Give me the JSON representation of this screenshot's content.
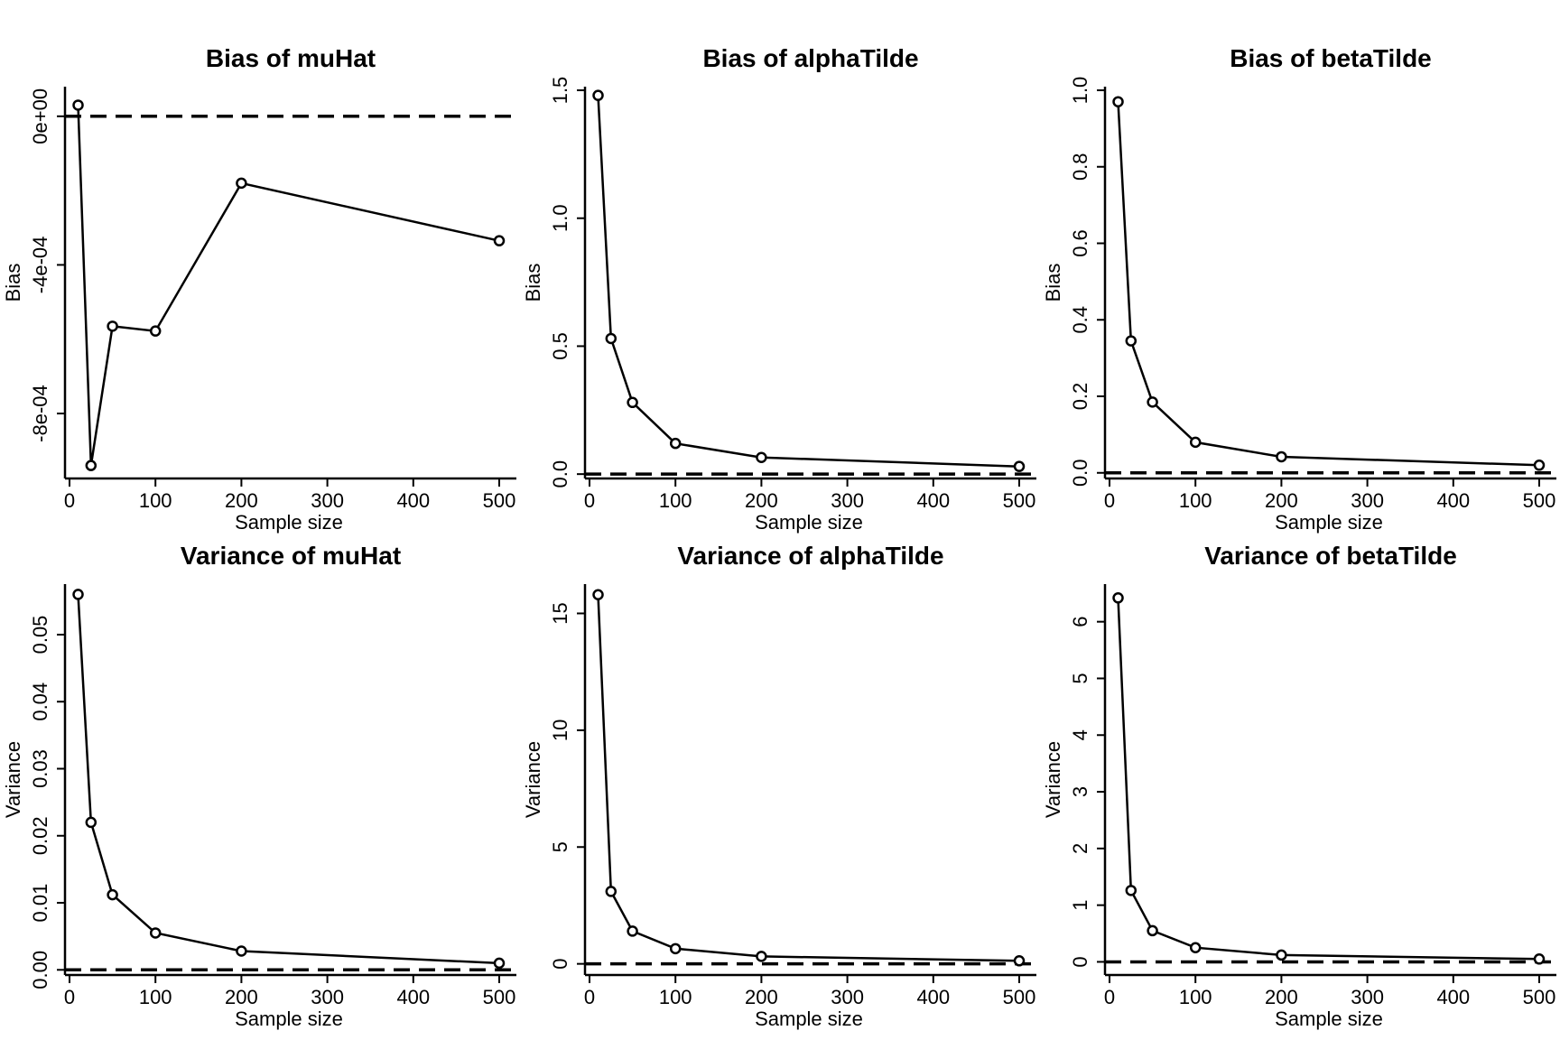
{
  "chart_data": [
    {
      "type": "line",
      "title": "Bias of muHat",
      "xlabel": "Sample size",
      "ylabel": "Bias",
      "x": [
        10,
        25,
        50,
        100,
        200,
        500
      ],
      "values": [
        3e-05,
        -0.00094,
        -0.000565,
        -0.000578,
        -0.00018,
        -0.000335
      ],
      "reference_line": 0,
      "xlim": [
        0,
        500
      ],
      "ylim": [
        -0.00097,
        7e-05
      ],
      "xticks": [
        0,
        100,
        200,
        300,
        400,
        500
      ],
      "xtick_labels": [
        "0",
        "100",
        "200",
        "300",
        "400",
        "500"
      ],
      "yticks": [
        0,
        -0.0004,
        -0.0008
      ],
      "ytick_labels": [
        "0e+00",
        "-4e-04",
        "-8e-04"
      ],
      "grid": false
    },
    {
      "type": "line",
      "title": "Bias of alphaTilde",
      "xlabel": "Sample size",
      "ylabel": "Bias",
      "x": [
        10,
        25,
        50,
        100,
        200,
        500
      ],
      "values": [
        1.48,
        0.53,
        0.28,
        0.12,
        0.065,
        0.03
      ],
      "reference_line": 0,
      "xlim": [
        0,
        500
      ],
      "ylim": [
        -0.01,
        1.5
      ],
      "xticks": [
        0,
        100,
        200,
        300,
        400,
        500
      ],
      "xtick_labels": [
        "0",
        "100",
        "200",
        "300",
        "400",
        "500"
      ],
      "yticks": [
        0,
        0.5,
        1,
        1.5
      ],
      "ytick_labels": [
        "0.0",
        "0.5",
        "1.0",
        "1.5"
      ],
      "grid": false
    },
    {
      "type": "line",
      "title": "Bias of betaTilde",
      "xlabel": "Sample size",
      "ylabel": "Bias",
      "x": [
        10,
        25,
        50,
        100,
        200,
        500
      ],
      "values": [
        0.97,
        0.345,
        0.185,
        0.08,
        0.042,
        0.02
      ],
      "reference_line": 0,
      "xlim": [
        0,
        500
      ],
      "ylim": [
        -0.01,
        1.0
      ],
      "xticks": [
        0,
        100,
        200,
        300,
        400,
        500
      ],
      "xtick_labels": [
        "0",
        "100",
        "200",
        "300",
        "400",
        "500"
      ],
      "yticks": [
        0,
        0.2,
        0.4,
        0.6,
        0.8,
        1
      ],
      "ytick_labels": [
        "0.0",
        "0.2",
        "0.4",
        "0.6",
        "0.8",
        "1.0"
      ],
      "grid": false
    },
    {
      "type": "line",
      "title": "Variance of muHat",
      "xlabel": "Sample size",
      "ylabel": "Variance",
      "x": [
        10,
        25,
        50,
        100,
        200,
        500
      ],
      "values": [
        0.056,
        0.022,
        0.0112,
        0.0055,
        0.0028,
        0.001
      ],
      "reference_line": 0,
      "xlim": [
        0,
        500
      ],
      "ylim": [
        -0.0005,
        0.057
      ],
      "xticks": [
        0,
        100,
        200,
        300,
        400,
        500
      ],
      "xtick_labels": [
        "0",
        "100",
        "200",
        "300",
        "400",
        "500"
      ],
      "yticks": [
        0,
        0.01,
        0.02,
        0.03,
        0.04,
        0.05
      ],
      "ytick_labels": [
        "0.00",
        "0.01",
        "0.02",
        "0.03",
        "0.04",
        "0.05"
      ],
      "grid": false
    },
    {
      "type": "line",
      "title": "Variance of alphaTilde",
      "xlabel": "Sample size",
      "ylabel": "Variance",
      "x": [
        10,
        25,
        50,
        100,
        200,
        500
      ],
      "values": [
        15.8,
        3.1,
        1.4,
        0.65,
        0.32,
        0.13
      ],
      "reference_line": 0,
      "xlim": [
        0,
        500
      ],
      "ylim": [
        -0.4,
        16.1
      ],
      "xticks": [
        0,
        100,
        200,
        300,
        400,
        500
      ],
      "xtick_labels": [
        "0",
        "100",
        "200",
        "300",
        "400",
        "500"
      ],
      "yticks": [
        0,
        5,
        10,
        15
      ],
      "ytick_labels": [
        "0",
        "5",
        "10",
        "15"
      ],
      "grid": false
    },
    {
      "type": "line",
      "title": "Variance of betaTilde",
      "xlabel": "Sample size",
      "ylabel": "Variance",
      "x": [
        10,
        25,
        50,
        100,
        200,
        500
      ],
      "values": [
        6.42,
        1.26,
        0.55,
        0.25,
        0.12,
        0.05
      ],
      "reference_line": 0,
      "xlim": [
        0,
        500
      ],
      "ylim": [
        -0.2,
        6.6
      ],
      "xticks": [
        0,
        100,
        200,
        300,
        400,
        500
      ],
      "xtick_labels": [
        "0",
        "100",
        "200",
        "300",
        "400",
        "500"
      ],
      "yticks": [
        0,
        1,
        2,
        3,
        4,
        5,
        6
      ],
      "ytick_labels": [
        "0",
        "1",
        "2",
        "3",
        "4",
        "5",
        "6"
      ],
      "grid": false
    }
  ]
}
